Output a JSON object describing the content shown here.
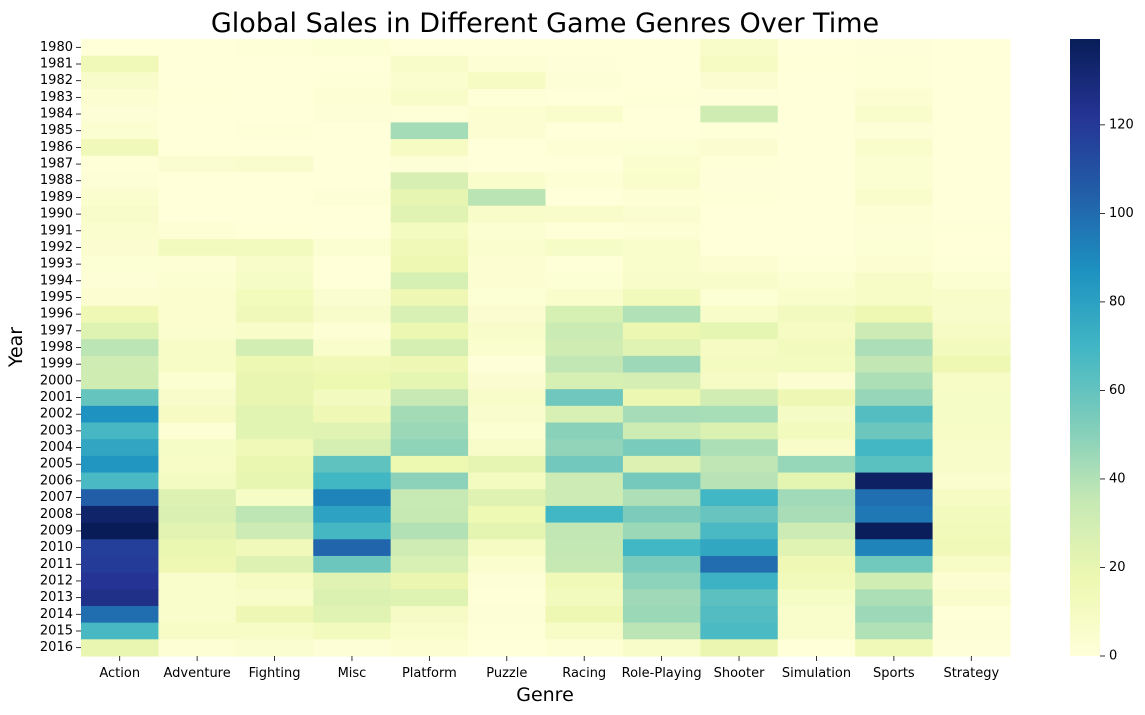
{
  "chart_data": {
    "type": "heatmap",
    "title": "Global Sales in Different Game Genres Over Time",
    "xlabel": "Genre",
    "ylabel": "Year",
    "genres": [
      "Action",
      "Adventure",
      "Fighting",
      "Misc",
      "Platform",
      "Puzzle",
      "Racing",
      "Role-Playing",
      "Shooter",
      "Simulation",
      "Sports",
      "Strategy"
    ],
    "years": [
      "1980",
      "1981",
      "1982",
      "1983",
      "1984",
      "1985",
      "1986",
      "1987",
      "1988",
      "1989",
      "1990",
      "1991",
      "1992",
      "1993",
      "1994",
      "1995",
      "1996",
      "1997",
      "1998",
      "1999",
      "2000",
      "2001",
      "2002",
      "2003",
      "2004",
      "2005",
      "2006",
      "2007",
      "2008",
      "2009",
      "2010",
      "2011",
      "2012",
      "2013",
      "2014",
      "2015",
      "2016"
    ],
    "values": [
      [
        0.3,
        0,
        0.8,
        2.7,
        0,
        0,
        0,
        0,
        7.1,
        0,
        0.5,
        0
      ],
      [
        14.8,
        0,
        0,
        0,
        6.9,
        2.2,
        0.5,
        0,
        10.0,
        0.4,
        0.8,
        0
      ],
      [
        6.5,
        0,
        0,
        0.9,
        5.0,
        10.0,
        1.6,
        0,
        3.8,
        0,
        1.1,
        0
      ],
      [
        2.9,
        0.4,
        0,
        2.1,
        6.9,
        0.8,
        0,
        0.8,
        0.5,
        0,
        3.2,
        0
      ],
      [
        1.9,
        0,
        0,
        1.5,
        0.7,
        3.1,
        6.0,
        0,
        31.1,
        0,
        6.2,
        0
      ],
      [
        3.5,
        0,
        1.0,
        0,
        43.2,
        3.2,
        0,
        0,
        1.0,
        0.1,
        1.9,
        0
      ],
      [
        13.7,
        0,
        0,
        0,
        9.4,
        0,
        2.0,
        2.5,
        3.9,
        0,
        5.6,
        0
      ],
      [
        1.1,
        4.4,
        5.4,
        0,
        1.7,
        0,
        0,
        4.7,
        0.7,
        0,
        3.7,
        0
      ],
      [
        1.7,
        0,
        0,
        0,
        27.7,
        5.6,
        2.1,
        5.9,
        0.5,
        0.03,
        3.6,
        0
      ],
      [
        4.6,
        0,
        0,
        1.3,
        20.7,
        37.8,
        0,
        2.2,
        1.2,
        0,
        5.7,
        0
      ],
      [
        6.4,
        0,
        0,
        0,
        22.9,
        7.5,
        6.3,
        4.5,
        0,
        0.2,
        2.0,
        0
      ],
      [
        4.7,
        2.0,
        0.4,
        0,
        11.1,
        3.7,
        1.2,
        2.2,
        0.2,
        0.2,
        1.9,
        0.9
      ],
      [
        3.8,
        11.8,
        12.1,
        3.6,
        14.2,
        5.0,
        8.3,
        5.9,
        0.2,
        0.2,
        2.7,
        0.4
      ],
      [
        2.8,
        2.1,
        7.4,
        0.3,
        16.7,
        3.2,
        1.2,
        5.9,
        3.2,
        0.8,
        3.0,
        0.8
      ],
      [
        1.9,
        3.6,
        8.6,
        0.3,
        27.9,
        3.2,
        2.8,
        7.6,
        6.6,
        3.5,
        8.0,
        3.7
      ],
      [
        3.3,
        4.2,
        12.8,
        4.4,
        16.2,
        2.5,
        5.6,
        12.9,
        2.8,
        5.6,
        8.0,
        7.0
      ],
      [
        15.5,
        4.2,
        14.1,
        6.5,
        27.2,
        3.8,
        27.9,
        40.1,
        7.0,
        11.3,
        16.6,
        6.3
      ],
      [
        24.3,
        4.7,
        7.2,
        2.1,
        18.1,
        6.3,
        32.9,
        18.1,
        21.0,
        10.1,
        32.0,
        8.8
      ],
      [
        37.5,
        8.0,
        29.5,
        5.7,
        28.4,
        5.3,
        31.3,
        23.2,
        9.9,
        11.8,
        41.4,
        12.0
      ],
      [
        31.5,
        8.1,
        17.0,
        14.0,
        16.2,
        0.6,
        35.9,
        45.1,
        10.8,
        10.9,
        35.9,
        16.5
      ],
      [
        31.0,
        3.4,
        19.2,
        17.4,
        21.0,
        4.1,
        28.0,
        28.6,
        8.9,
        3.1,
        41.2,
        8.2
      ],
      [
        59.4,
        6.7,
        19.7,
        11.3,
        34.6,
        6.8,
        56.8,
        17.7,
        29.9,
        16.2,
        46.5,
        8.4
      ],
      [
        86.8,
        10.1,
        22.6,
        15.7,
        43.4,
        5.4,
        26.9,
        42.8,
        42.6,
        9.2,
        64.6,
        8.7
      ],
      [
        67.9,
        2.4,
        22.5,
        23.6,
        45.4,
        3.6,
        49.6,
        31.9,
        25.7,
        12.3,
        57.3,
        7.8
      ],
      [
        77.6,
        8.6,
        15.0,
        28.3,
        48.3,
        7.6,
        47.8,
        54.1,
        41.1,
        6.8,
        69.2,
        7.4
      ],
      [
        85.0,
        8.1,
        18.9,
        60.9,
        17.3,
        20.6,
        55.7,
        25.4,
        36.5,
        46.8,
        62.5,
        6.8
      ],
      [
        67.3,
        10.2,
        20.0,
        69.3,
        49.1,
        10.3,
        32.1,
        55.1,
        38.7,
        21.4,
        136.2,
        5.3
      ],
      [
        104.8,
        24.7,
        8.7,
        91.6,
        34.8,
        23.9,
        32.2,
        40.8,
        69.6,
        44.1,
        98.9,
        9.4
      ],
      [
        134.4,
        26.2,
        37.0,
        79.2,
        35.0,
        16.0,
        69.6,
        52.8,
        58.9,
        42.4,
        95.5,
        11.6
      ],
      [
        139.4,
        21.8,
        32.0,
        68.7,
        39.7,
        21.4,
        35.8,
        45.5,
        67.3,
        32.2,
        138.5,
        12.9
      ],
      [
        117.6,
        18.6,
        13.7,
        101.7,
        31.7,
        10.1,
        35.5,
        69.8,
        76.8,
        22.7,
        91.6,
        13.9
      ],
      [
        118.7,
        16.7,
        24.7,
        57.7,
        27.1,
        4.6,
        35.0,
        53.9,
        99.4,
        15.8,
        56.3,
        8.2
      ],
      [
        122.0,
        6.0,
        9.9,
        22.9,
        18.4,
        1.7,
        14.0,
        48.9,
        71.8,
        13.4,
        30.7,
        3.3
      ],
      [
        125.2,
        6.2,
        7.2,
        25.6,
        24.5,
        1.0,
        12.4,
        44.5,
        62.0,
        8.6,
        41.2,
        6.1
      ],
      [
        99.0,
        5.6,
        16.2,
        23.4,
        8.8,
        1.5,
        16.5,
        45.6,
        65.0,
        5.6,
        45.1,
        1.0
      ],
      [
        67.8,
        8.1,
        7.9,
        11.6,
        6.1,
        0.7,
        8.1,
        37.6,
        67.0,
        5.6,
        40.1,
        1.9
      ],
      [
        19.9,
        2.3,
        4.5,
        1.5,
        3.1,
        0,
        2.3,
        6.8,
        18.2,
        0.4,
        14.6,
        0.5
      ]
    ],
    "vmin": 0,
    "vmax": 139.4,
    "colorbar_ticks": [
      0,
      20,
      40,
      60,
      80,
      100,
      120
    ],
    "colormap": "YlGnBu",
    "colormap_stops": [
      "#ffffd9",
      "#edf8b1",
      "#c7e9b4",
      "#7fcdbb",
      "#41b6c4",
      "#1d91c0",
      "#225ea8",
      "#253494",
      "#081d58"
    ]
  }
}
